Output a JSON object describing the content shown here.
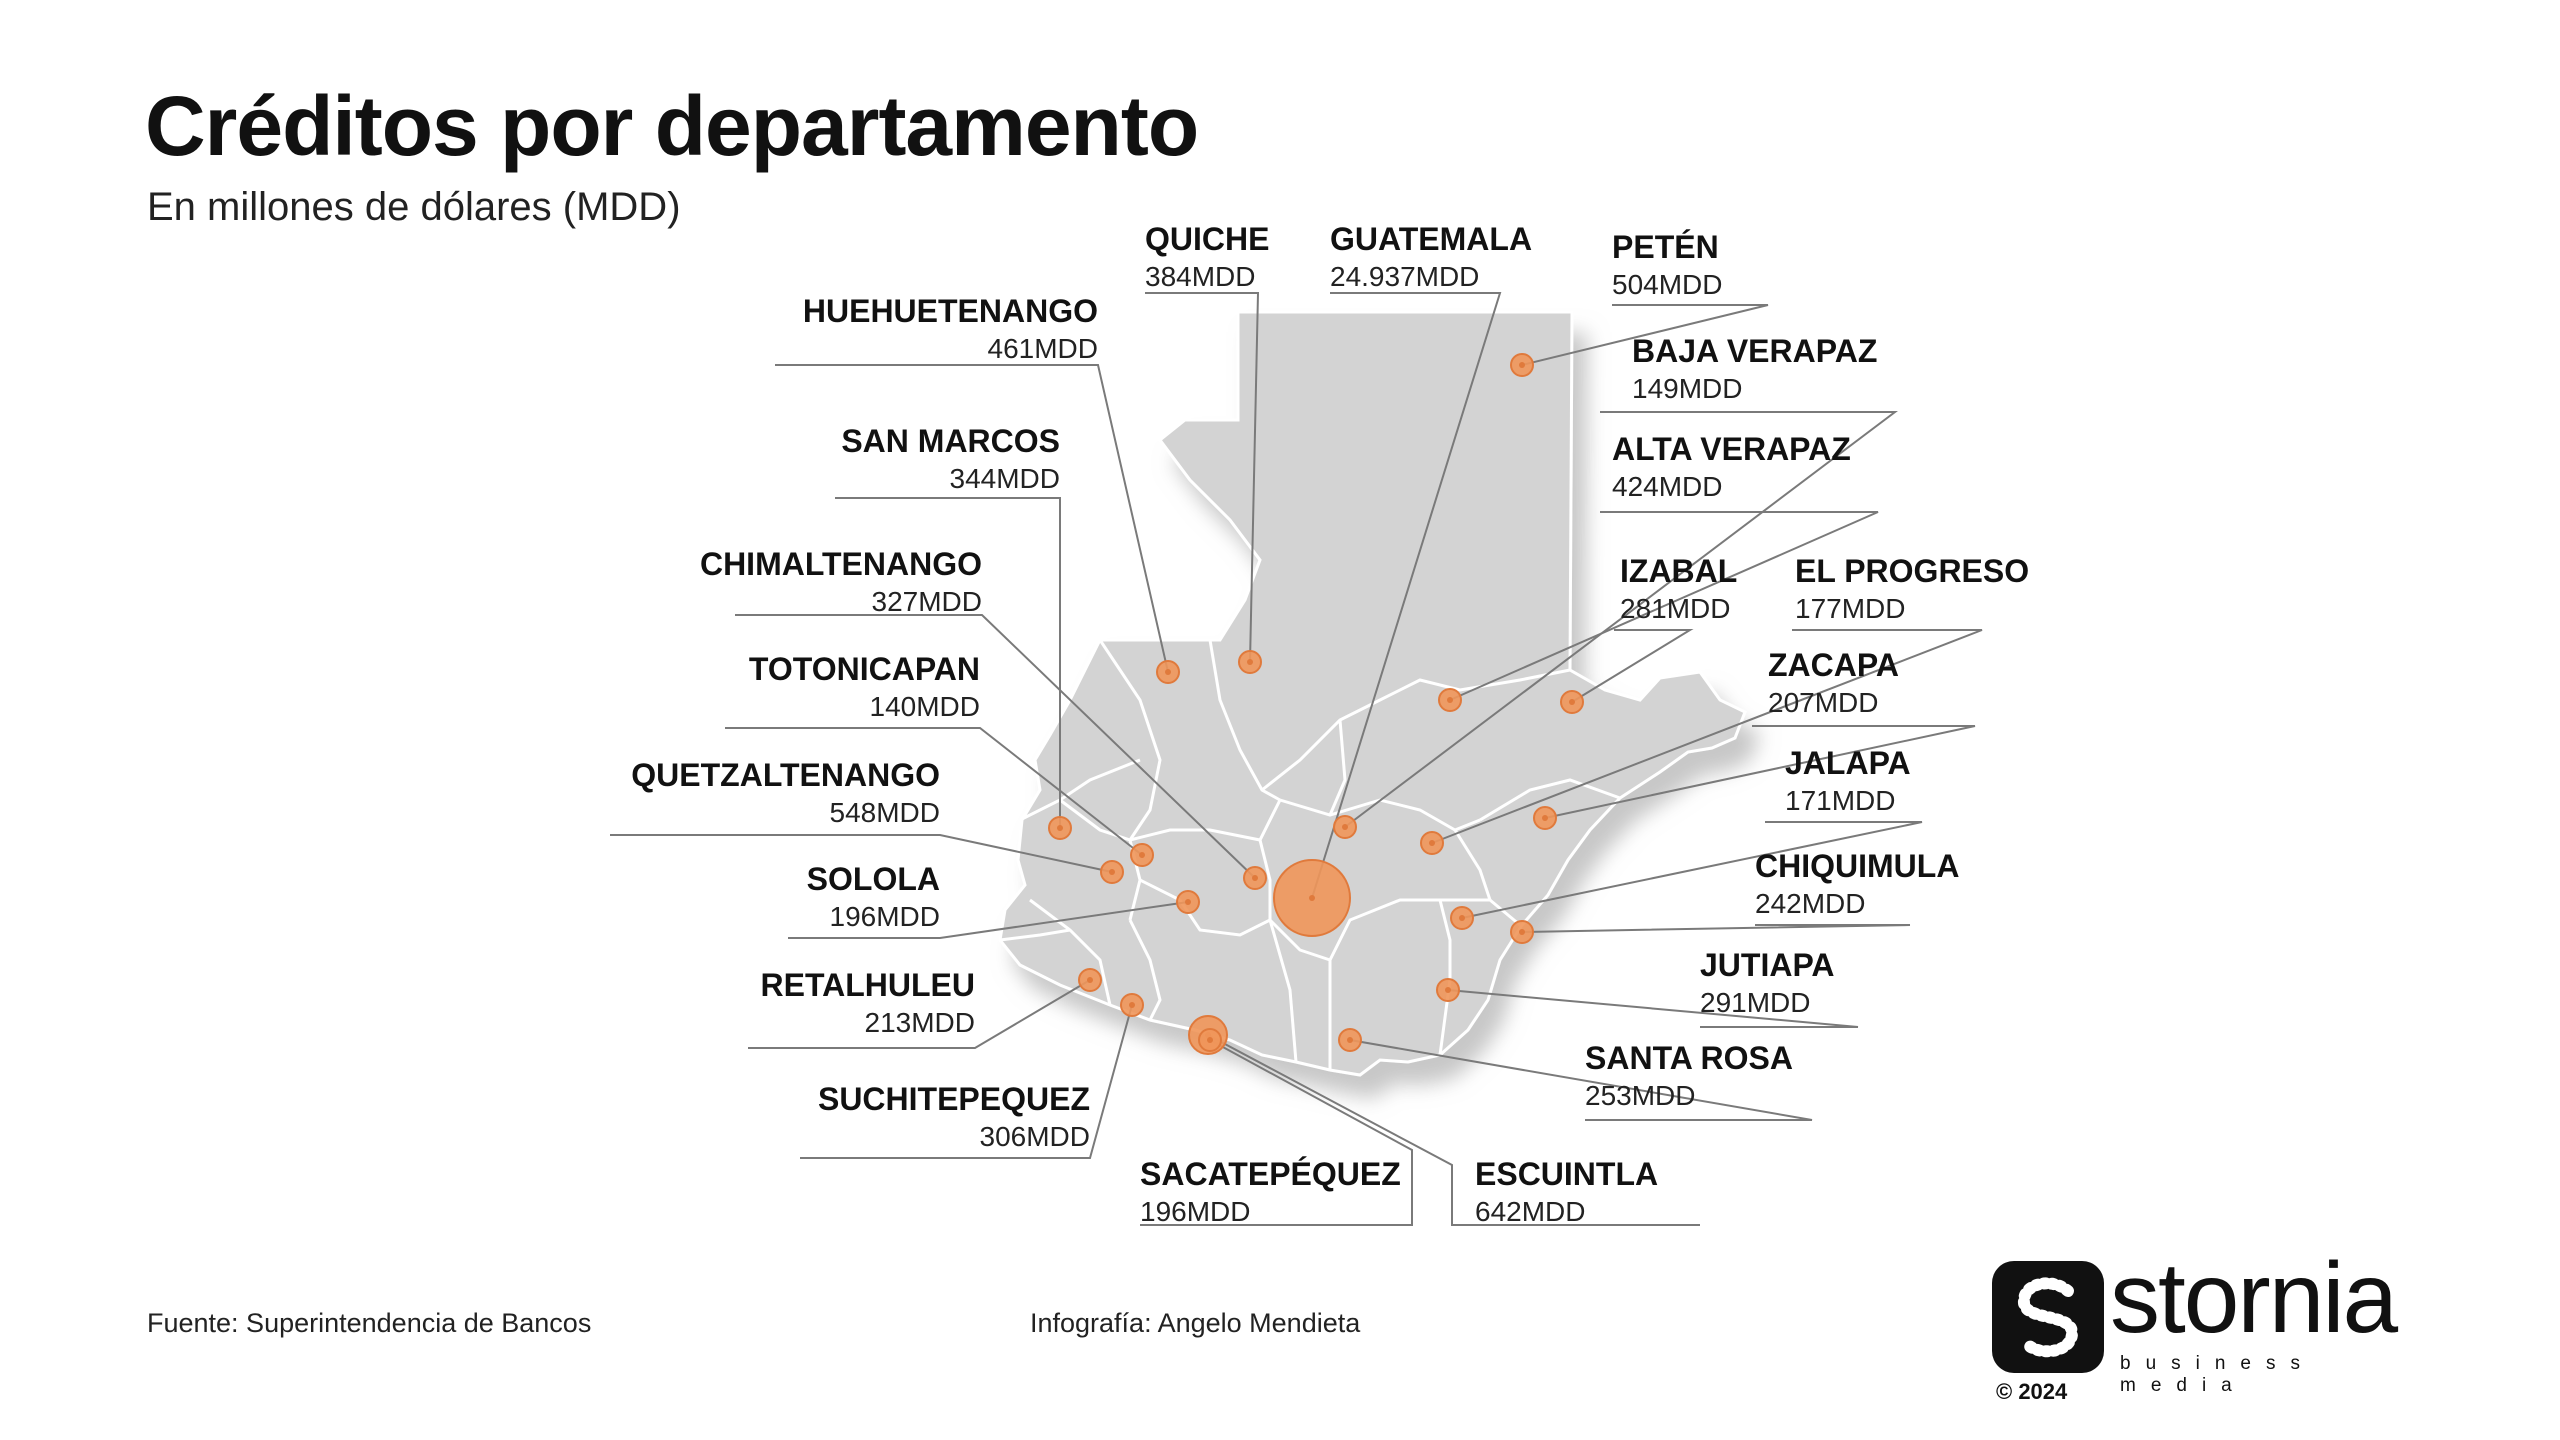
{
  "header": {
    "title": "Créditos por departamento",
    "subtitle": "En millones de dólares (MDD)"
  },
  "departments": [
    {
      "id": "huehuetenango",
      "name": "HUEHUETENANGO",
      "value": "461MDD"
    },
    {
      "id": "quiche",
      "name": "QUICHE",
      "value": "384MDD"
    },
    {
      "id": "guatemala",
      "name": "GUATEMALA",
      "value": "24.937MDD"
    },
    {
      "id": "peten",
      "name": "PETÉN",
      "value": "504MDD"
    },
    {
      "id": "baja-verapaz",
      "name": "BAJA VERAPAZ",
      "value": "149MDD"
    },
    {
      "id": "alta-verapaz",
      "name": "ALTA VERAPAZ",
      "value": "424MDD"
    },
    {
      "id": "izabal",
      "name": "IZABAL",
      "value": "281MDD"
    },
    {
      "id": "el-progreso",
      "name": "EL PROGRESO",
      "value": "177MDD"
    },
    {
      "id": "zacapa",
      "name": "ZACAPA",
      "value": "207MDD"
    },
    {
      "id": "jalapa",
      "name": "JALAPA",
      "value": "171MDD"
    },
    {
      "id": "chiquimula",
      "name": "CHIQUIMULA",
      "value": "242MDD"
    },
    {
      "id": "jutiapa",
      "name": "JUTIAPA",
      "value": "291MDD"
    },
    {
      "id": "santa-rosa",
      "name": "SANTA ROSA",
      "value": "253MDD"
    },
    {
      "id": "escuintla",
      "name": "ESCUINTLA",
      "value": "642MDD"
    },
    {
      "id": "sacatepequez",
      "name": "SACATEPÉQUEZ",
      "value": "196MDD"
    },
    {
      "id": "suchitepequez",
      "name": "SUCHITEPEQUEZ",
      "value": "306MDD"
    },
    {
      "id": "retalhuleu",
      "name": "RETALHULEU",
      "value": "213MDD"
    },
    {
      "id": "solola",
      "name": "SOLOLA",
      "value": "196MDD"
    },
    {
      "id": "quetzaltenango",
      "name": "QUETZALTENANGO",
      "value": "548MDD"
    },
    {
      "id": "totonicapan",
      "name": "TOTONICAPAN",
      "value": "140MDD"
    },
    {
      "id": "chimaltenango",
      "name": "CHIMALTENANGO",
      "value": "327MDD"
    },
    {
      "id": "san-marcos",
      "name": "SAN MARCOS",
      "value": "344MDD"
    }
  ],
  "footer": {
    "source": "Fuente: Superintendencia de Bancos",
    "credit": "Infografía: Angelo Mendieta"
  },
  "logo": {
    "word": "stornia",
    "tagline": "business media",
    "copyright": "© 2024"
  },
  "colors": {
    "marker": "#f0965a",
    "marker_stroke": "#e07a3c",
    "map_fill": "#d3d3d3",
    "map_border": "#ffffff",
    "leader": "#7a7a7a"
  }
}
